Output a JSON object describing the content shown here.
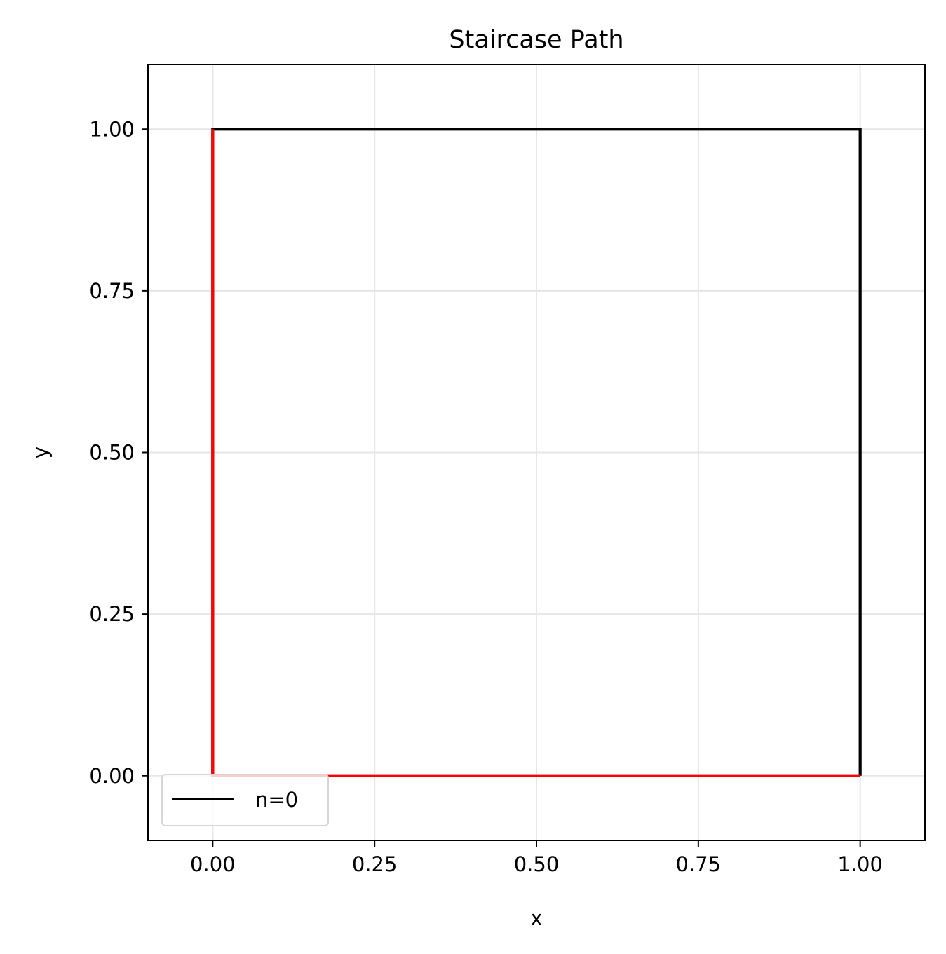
{
  "chart_data": {
    "type": "line",
    "title": "Staircase Path",
    "xlabel": "x",
    "ylabel": "y",
    "xlim": [
      -0.1,
      1.1
    ],
    "ylim": [
      -0.1,
      1.1
    ],
    "xticks": [
      0.0,
      0.25,
      0.5,
      0.75,
      1.0
    ],
    "yticks": [
      0.0,
      0.25,
      0.5,
      0.75,
      1.0
    ],
    "xtick_labels": [
      "0.00",
      "0.25",
      "0.50",
      "0.75",
      "1.00"
    ],
    "ytick_labels": [
      "0.00",
      "0.25",
      "0.50",
      "0.75",
      "1.00"
    ],
    "grid": true,
    "legend_position": "lower-left",
    "series": [
      {
        "name": "n=0",
        "color": "#000000",
        "in_legend": true,
        "x": [
          0,
          0,
          1,
          1
        ],
        "y": [
          0,
          1,
          1,
          0
        ]
      },
      {
        "color": "#ff0000",
        "in_legend": false,
        "x": [
          0,
          0,
          1
        ],
        "y": [
          1,
          0,
          0
        ]
      }
    ]
  }
}
